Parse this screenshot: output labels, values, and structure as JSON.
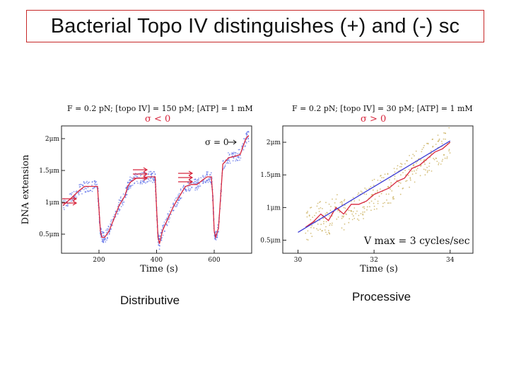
{
  "slide": {
    "title": "Bacterial Topo IV distinguishes (+) and (-) sc",
    "caption_left": "Distributive",
    "caption_right": "Processive"
  },
  "chart_data": [
    {
      "type": "scatter",
      "header_conditions": "F = 0.2 pN; [topo IV] = 150 pM; [ATP] = 1 mM",
      "header_sigma": "σ < 0",
      "annotation": "σ = 0",
      "xlabel": "Time (s)",
      "ylabel": "DNA extension",
      "x_ticks": [
        "200",
        "400",
        "600"
      ],
      "y_ticks": [
        "0.5μm",
        "1μm",
        "1.5μm",
        "2μm"
      ],
      "xlim": [
        70,
        730
      ],
      "ylim": [
        0.2,
        2.2
      ],
      "series": [
        {
          "color": "#d7263d",
          "x": [
            75,
            100,
            130,
            150,
            175,
            195,
            200,
            205,
            210,
            220,
            235,
            250,
            270,
            290,
            300,
            310,
            330,
            350,
            370,
            385,
            395,
            400,
            405,
            410,
            420,
            440,
            460,
            480,
            500,
            520,
            540,
            560,
            575,
            590,
            595,
            600,
            605,
            615,
            630,
            650,
            670,
            690,
            710,
            720
          ],
          "y": [
            0.95,
            1.05,
            1.18,
            1.25,
            1.25,
            1.25,
            0.9,
            0.55,
            0.45,
            0.45,
            0.55,
            0.72,
            0.95,
            1.1,
            1.25,
            1.32,
            1.38,
            1.38,
            1.4,
            1.4,
            1.4,
            0.9,
            0.45,
            0.35,
            0.55,
            0.75,
            0.95,
            1.1,
            1.25,
            1.28,
            1.28,
            1.35,
            1.4,
            1.4,
            1.1,
            0.55,
            0.45,
            0.6,
            1.6,
            1.7,
            1.72,
            1.75,
            2.0,
            2.05
          ]
        }
      ],
      "point_color": "#5b6ee8"
    },
    {
      "type": "scatter",
      "header_conditions": "F = 0.2 pN; [topo IV] = 30 pM; [ATP] = 1 mM",
      "header_sigma": "σ > 0",
      "annotation": "V max = 3 cycles/sec",
      "xlabel": "Time (s)",
      "ylabel": "",
      "x_ticks": [
        "30",
        "32",
        "34"
      ],
      "y_ticks": [
        "0.5μm",
        "1μm",
        "1.5μm",
        "2μm"
      ],
      "xlim": [
        29.6,
        34.6
      ],
      "ylim": [
        0.3,
        2.25
      ],
      "fit": {
        "color": "#3b3bd6",
        "x": [
          30,
          34
        ],
        "y": [
          0.62,
          2.02
        ]
      },
      "series": [
        {
          "color": "#d7263d",
          "x": [
            30.2,
            30.4,
            30.6,
            30.8,
            31.0,
            31.2,
            31.4,
            31.6,
            31.8,
            32.0,
            32.2,
            32.4,
            32.6,
            32.8,
            33.0,
            33.2,
            33.4,
            33.6,
            33.8,
            34.0
          ],
          "y": [
            0.7,
            0.78,
            0.9,
            0.8,
            1.0,
            0.9,
            1.05,
            1.05,
            1.1,
            1.2,
            1.25,
            1.3,
            1.4,
            1.45,
            1.6,
            1.65,
            1.75,
            1.85,
            1.9,
            2.0
          ]
        }
      ],
      "point_color": "#c4a64a"
    }
  ]
}
